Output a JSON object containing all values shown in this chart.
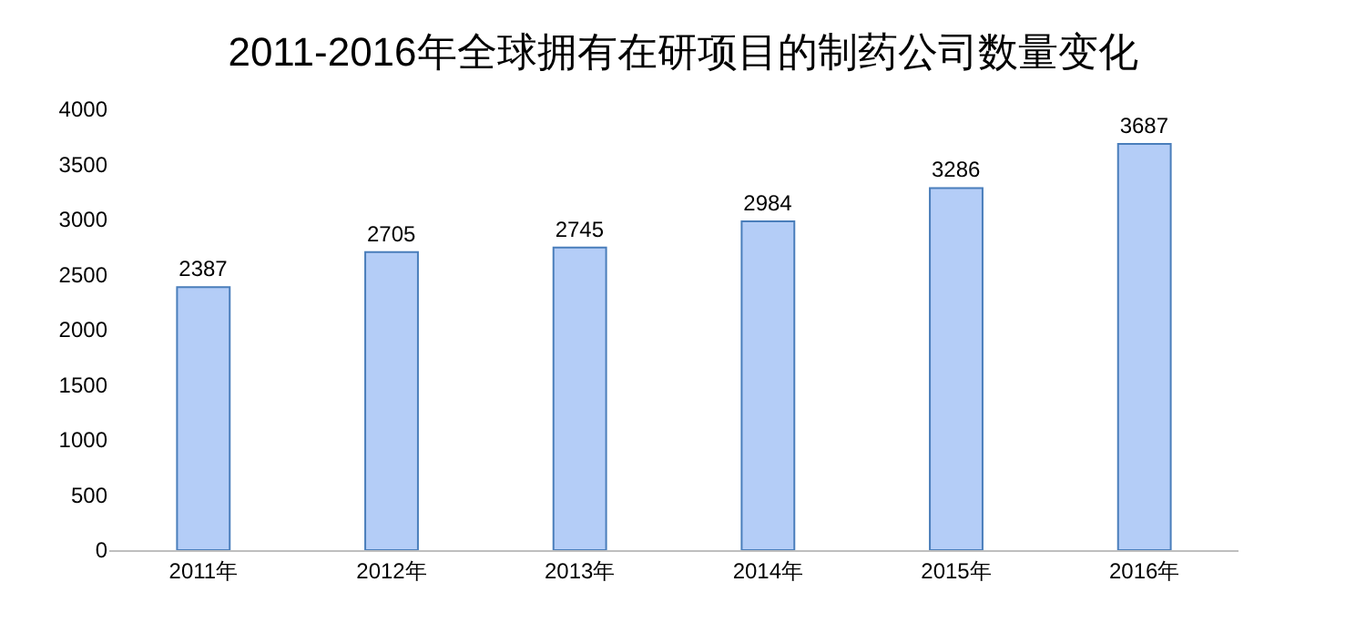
{
  "chart_data": {
    "type": "bar",
    "title": "2011-2016年全球拥有在研项目的制药公司数量变化",
    "categories": [
      "2011年",
      "2012年",
      "2013年",
      "2014年",
      "2015年",
      "2016年"
    ],
    "values": [
      2387,
      2705,
      2745,
      2984,
      3286,
      3687
    ],
    "color": "#b4cdf7",
    "ylim": [
      0,
      4000
    ],
    "yticks": [
      0,
      500,
      1000,
      1500,
      2000,
      2500,
      3000,
      3500,
      4000
    ],
    "data_labels": true
  }
}
